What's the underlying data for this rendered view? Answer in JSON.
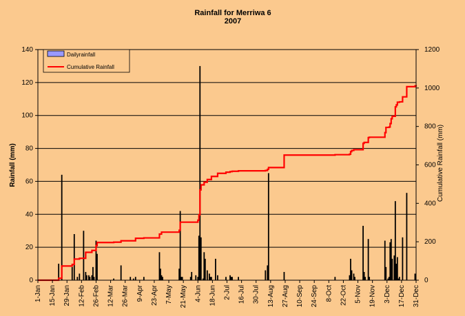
{
  "chart_data": {
    "type": "bar+line",
    "title": "Rainfall  for Merriwa 6",
    "subtitle": "2007",
    "ylabel": "Rainfall (mm)",
    "y2label": "Cumulative Rainfall (mm)",
    "ylim": [
      0,
      140
    ],
    "y2lim": [
      0,
      1200
    ],
    "yticks": [
      0,
      20,
      40,
      60,
      80,
      100,
      120,
      140
    ],
    "y2ticks": [
      0,
      200,
      400,
      600,
      800,
      1000,
      1200
    ],
    "x_range_days": [
      1,
      365
    ],
    "x_tick_labels": [
      "1-Jan",
      "15-Jan",
      "29-Jan",
      "12-Feb",
      "26-Feb",
      "12-Mar",
      "26-Mar",
      "9-Apr",
      "23-Apr",
      "7-May",
      "21-May",
      "4-Jun",
      "18-Jun",
      "2-Jul",
      "16-Jul",
      "30-Jul",
      "13-Aug",
      "27-Aug",
      "10-Sep",
      "24-Sep",
      "8-Oct",
      "22-Oct",
      "5-Nov",
      "19-Nov",
      "3-Dec",
      "17-Dec",
      "31-Dec"
    ],
    "gridlines": "horizontal",
    "legend_position": "top-left",
    "series": [
      {
        "name": "Dailyrainfall",
        "kind": "bar",
        "color": "#9999FF",
        "x_day": [
          21,
          24,
          34,
          36,
          39,
          41,
          45,
          47,
          48,
          50,
          51,
          53,
          54,
          55,
          57,
          58,
          74,
          81,
          90,
          93,
          95,
          103,
          118,
          119,
          120,
          121,
          137,
          138,
          139,
          140,
          148,
          149,
          153,
          155,
          156,
          157,
          158,
          160,
          161,
          162,
          164,
          166,
          167,
          168,
          172,
          174,
          182,
          186,
          187,
          188,
          194,
          220,
          222,
          223,
          238,
          287,
          301,
          302,
          303,
          305,
          306,
          314,
          315,
          316,
          319,
          320,
          335,
          336,
          338,
          339,
          340,
          341,
          342,
          344,
          345,
          346,
          347,
          348,
          349,
          352,
          356,
          364
        ],
        "values": [
          10,
          64,
          8,
          28,
          2,
          4,
          30,
          5,
          3,
          3,
          2,
          3,
          8,
          2,
          24,
          16,
          1,
          9,
          2,
          1,
          2,
          2,
          17,
          7,
          3,
          2,
          7,
          42,
          2,
          2,
          2,
          5,
          3,
          2,
          27,
          130,
          26,
          1,
          17,
          13,
          6,
          4,
          2,
          2,
          13,
          3,
          2,
          3,
          2,
          2,
          2,
          6,
          9,
          65,
          5,
          2,
          3,
          13,
          6,
          4,
          2,
          33,
          5,
          2,
          25,
          2,
          24,
          8,
          1,
          2,
          23,
          25,
          13,
          15,
          48,
          10,
          14,
          1,
          2,
          26,
          53,
          4
        ]
      },
      {
        "name": "Cumulative Rainfall",
        "kind": "line",
        "color": "#FF0000",
        "axis": "secondary",
        "x_day": [
          1,
          21,
          24,
          34,
          36,
          41,
          47,
          53,
          57,
          58,
          74,
          81,
          95,
          103,
          118,
          120,
          137,
          138,
          155,
          156,
          157,
          158,
          161,
          164,
          168,
          174,
          182,
          186,
          188,
          194,
          220,
          222,
          223,
          238,
          287,
          301,
          302,
          303,
          305,
          314,
          315,
          319,
          320,
          335,
          336,
          339,
          340,
          341,
          342,
          345,
          346,
          347,
          349,
          352,
          356,
          364,
          365
        ],
        "values": [
          0,
          10,
          74,
          82,
          110,
          114,
          145,
          155,
          180,
          196,
          198,
          205,
          218,
          220,
          240,
          250,
          260,
          302,
          312,
          340,
          470,
          496,
          510,
          524,
          540,
          556,
          562,
          565,
          567,
          569,
          571,
          577,
          586,
          651,
          653,
          656,
          669,
          675,
          679,
          712,
          717,
          742,
          744,
          768,
          795,
          797,
          815,
          840,
          853,
          902,
          912,
          926,
          928,
          954,
          1007,
          1011,
          1015
        ]
      }
    ]
  }
}
